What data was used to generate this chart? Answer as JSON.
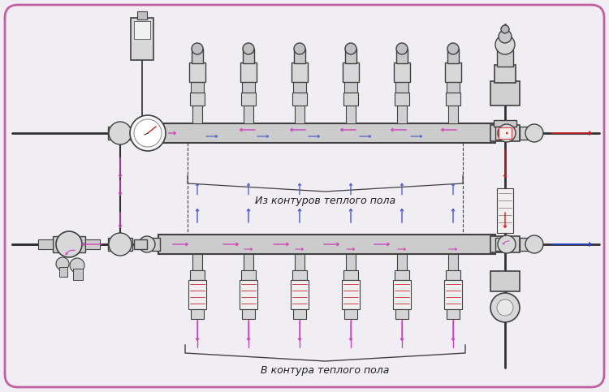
{
  "bg_color": "#f0eef2",
  "border_color": "#c060a0",
  "border_lw": 2.0,
  "pipe_color": "#303030",
  "text_color": "#202020",
  "sc": "#cc44bb",
  "rc": "#4455cc",
  "hc": "#cc2222",
  "cc": "#2244cc",
  "fc_light": "#e8e8e8",
  "fc_mid": "#d0d0d0",
  "fc_dark": "#b8b8b8",
  "ec": "#404040",
  "label_iz": "Из контуров теплого пола",
  "label_v": "В контура теплого пола",
  "figwidth": 7.5,
  "figheight": 4.83,
  "dpi": 100
}
